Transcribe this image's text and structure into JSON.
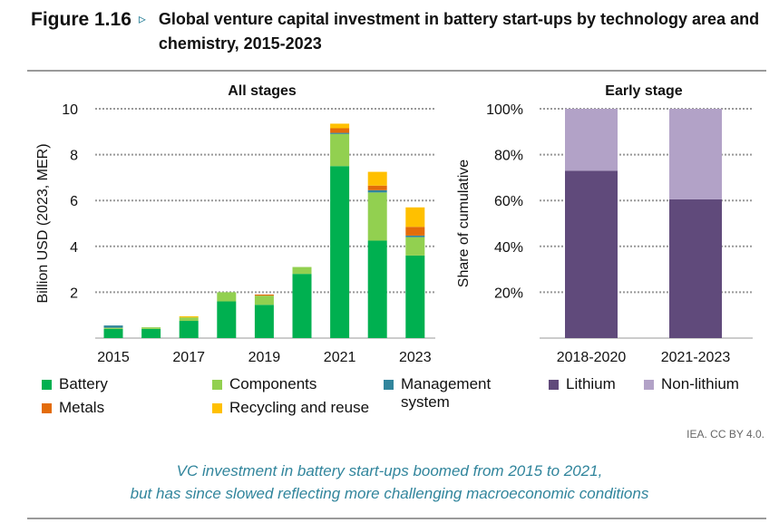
{
  "header": {
    "figure": "Figure 1.16",
    "arrow": "▹",
    "title": "Global venture capital investment in battery start-ups by technology area and chemistry, 2015-2023"
  },
  "chart_data": [
    {
      "type": "bar",
      "stacked": true,
      "title": "All stages",
      "ylabel": "Billion USD (2023, MER)",
      "ylim": [
        0,
        10
      ],
      "yticks": [
        "2",
        "4",
        "6",
        "8",
        "10"
      ],
      "categories": [
        "2015",
        "2016",
        "2017",
        "2018",
        "2019",
        "2020",
        "2021",
        "2022",
        "2023"
      ],
      "xtick_labels": [
        "2015",
        "",
        "2017",
        "",
        "2019",
        "",
        "2021",
        "",
        "2023"
      ],
      "series": [
        {
          "name": "Battery",
          "color": "#00b050",
          "values": [
            0.4,
            0.4,
            0.75,
            1.6,
            1.45,
            2.8,
            7.5,
            4.25,
            3.6
          ]
        },
        {
          "name": "Components",
          "color": "#92d050",
          "values": [
            0.05,
            0.07,
            0.15,
            0.4,
            0.4,
            0.3,
            1.4,
            2.1,
            0.8
          ]
        },
        {
          "name": "Management system",
          "color": "#31859c",
          "values": [
            0.1,
            0.0,
            0.0,
            0.0,
            0.0,
            0.0,
            0.05,
            0.1,
            0.07
          ]
        },
        {
          "name": "Metals",
          "color": "#e36c0a",
          "values": [
            0.0,
            0.0,
            0.0,
            0.0,
            0.05,
            0.0,
            0.2,
            0.2,
            0.38
          ]
        },
        {
          "name": "Recycling and reuse",
          "color": "#ffc000",
          "values": [
            0.0,
            0.0,
            0.05,
            0.0,
            0.0,
            0.0,
            0.2,
            0.6,
            0.85
          ]
        }
      ],
      "grid": true
    },
    {
      "type": "bar",
      "stacked": true,
      "title": "Early stage",
      "ylabel": "Share of cumulative",
      "ylim": [
        0,
        100
      ],
      "yticks": [
        "20%",
        "40%",
        "60%",
        "80%",
        "100%"
      ],
      "categories": [
        "2018-2020",
        "2021-2023"
      ],
      "series": [
        {
          "name": "Lithium",
          "color": "#604a7b",
          "values": [
            73,
            60.5
          ]
        },
        {
          "name": "Non-lithium",
          "color": "#b2a2c7",
          "values": [
            27,
            39.5
          ]
        }
      ],
      "grid": true
    }
  ],
  "legend_left": [
    "Battery",
    "Components",
    "Management system",
    "Metals",
    "Recycling and reuse"
  ],
  "legend_right": [
    "Lithium",
    "Non-lithium"
  ],
  "source": "IEA. CC BY 4.0.",
  "caption": [
    "VC investment in battery start-ups boomed from 2015 to 2021,",
    "but has since slowed reflecting more challenging macroeconomic conditions"
  ]
}
